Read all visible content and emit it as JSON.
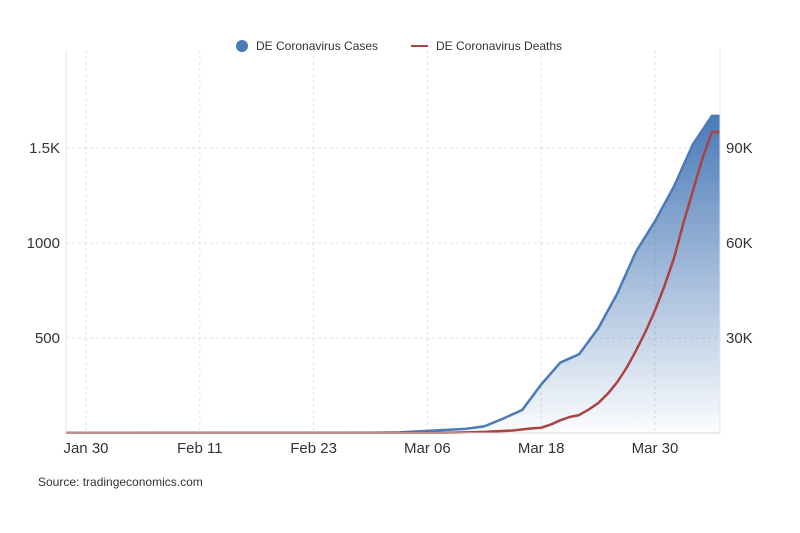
{
  "chart_data": {
    "type": "area",
    "title": "",
    "xlabel": "",
    "ylabel": "",
    "source": "Source: tradingeconomics.com",
    "x_ticks": [
      "Jan 30",
      "Feb 11",
      "Feb 23",
      "Mar 06",
      "Mar 18",
      "Mar 30"
    ],
    "left_axis": {
      "ticks": [
        "500",
        "1000",
        "1.5K"
      ],
      "tick_values": [
        500,
        1000,
        1500
      ],
      "ylim": [
        0,
        2000
      ]
    },
    "right_axis": {
      "ticks": [
        "30K",
        "60K",
        "90K"
      ],
      "tick_values": [
        30000,
        60000,
        90000
      ],
      "ylim": [
        0,
        120000
      ]
    },
    "grid": true,
    "legend_position": "top-center",
    "series": [
      {
        "name": "DE Coronavirus Cases",
        "type": "area",
        "axis": "right",
        "color": "#4a7ab8",
        "points": [
          [
            "Jan 27",
            0
          ],
          [
            "Jan 30",
            4
          ],
          [
            "Feb 11",
            16
          ],
          [
            "Feb 23",
            16
          ],
          [
            "Feb 29",
            79
          ],
          [
            "Mar 03",
            196
          ],
          [
            "Mar 06",
            670
          ],
          [
            "Mar 10",
            1281
          ],
          [
            "Mar 12",
            2078
          ],
          [
            "Mar 14",
            4585
          ],
          [
            "Mar 16",
            7272
          ],
          [
            "Mar 18",
            15320
          ],
          [
            "Mar 20",
            22213
          ],
          [
            "Mar 22",
            24873
          ],
          [
            "Mar 24",
            32991
          ],
          [
            "Mar 26",
            43938
          ],
          [
            "Mar 28",
            57298
          ],
          [
            "Mar 30",
            66885
          ],
          [
            "Apr 01",
            77872
          ],
          [
            "Apr 03",
            91159
          ],
          [
            "Apr 05",
            100123
          ],
          [
            "Apr 06",
            100123
          ]
        ]
      },
      {
        "name": "DE Coronavirus Deaths",
        "type": "line",
        "axis": "left",
        "color": "#a94442",
        "points": [
          [
            "Jan 27",
            0
          ],
          [
            "Mar 06",
            0
          ],
          [
            "Mar 09",
            2
          ],
          [
            "Mar 12",
            6
          ],
          [
            "Mar 15",
            13
          ],
          [
            "Mar 17",
            24
          ],
          [
            "Mar 18",
            28
          ],
          [
            "Mar 19",
            44
          ],
          [
            "Mar 20",
            67
          ],
          [
            "Mar 21",
            84
          ],
          [
            "Mar 22",
            94
          ],
          [
            "Mar 23",
            123
          ],
          [
            "Mar 24",
            157
          ],
          [
            "Mar 25",
            206
          ],
          [
            "Mar 26",
            267
          ],
          [
            "Mar 27",
            342
          ],
          [
            "Mar 28",
            433
          ],
          [
            "Mar 29",
            533
          ],
          [
            "Mar 30",
            645
          ],
          [
            "Mar 31",
            775
          ],
          [
            "Apr 01",
            920
          ],
          [
            "Apr 02",
            1107
          ],
          [
            "Apr 03",
            1275
          ],
          [
            "Apr 04",
            1444
          ],
          [
            "Apr 05",
            1584
          ],
          [
            "Apr 06",
            1584
          ]
        ]
      }
    ]
  }
}
